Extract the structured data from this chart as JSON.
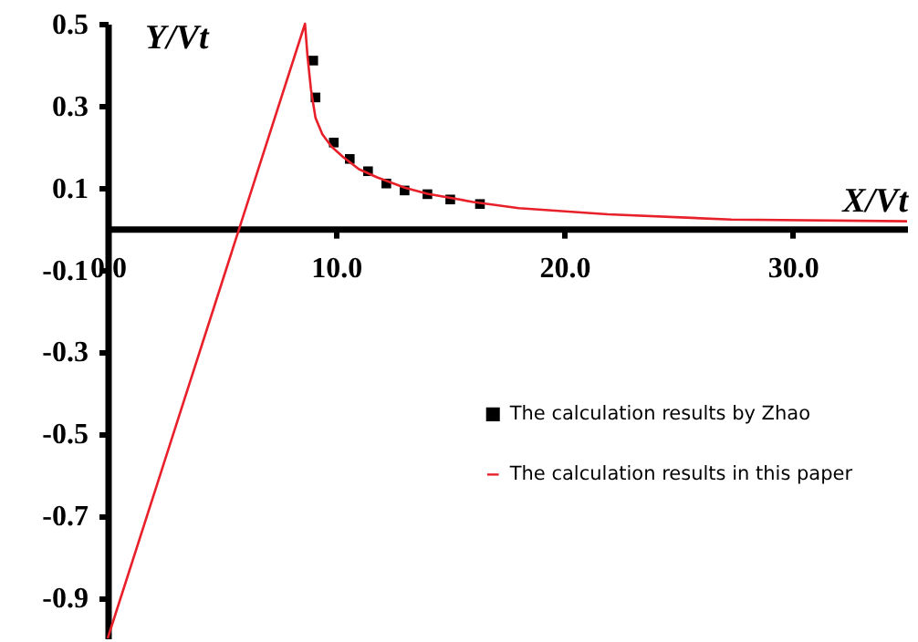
{
  "chart_data": {
    "type": "line",
    "xlabel": "X/Vt",
    "ylabel": "Y/Vt",
    "xlim": [
      0,
      35
    ],
    "ylim": [
      -1.0,
      0.5
    ],
    "xticks": [
      {
        "value": 0,
        "label": "0.0"
      },
      {
        "value": 10,
        "label": "10.0"
      },
      {
        "value": 20,
        "label": "20.0"
      },
      {
        "value": 30,
        "label": "30.0"
      }
    ],
    "yticks": [
      0.5,
      0.3,
      0.1,
      -0.1,
      -0.3,
      -0.5,
      -0.7,
      -0.9
    ],
    "grid": false,
    "legend": "bottom right",
    "series": [
      {
        "name": "The calculation results by Zhao",
        "type": "scatter",
        "marker": "square",
        "color": "#000000",
        "x": [
          9.0,
          9.1,
          9.9,
          10.6,
          11.4,
          12.2,
          13.0,
          14.0,
          15.0,
          16.3
        ],
        "values": [
          0.41,
          0.32,
          0.21,
          0.17,
          0.14,
          0.11,
          0.093,
          0.084,
          0.071,
          0.06
        ]
      },
      {
        "name": "The calculation results in this paper",
        "type": "line",
        "marker": "none",
        "color": "#e8202a",
        "x": [
          0,
          5.76,
          8.64,
          8.75,
          8.9,
          9.1,
          9.4,
          9.8,
          10.3,
          11.0,
          11.8,
          13.0,
          14.0,
          16.0,
          18.0,
          21.9,
          27.3,
          35
        ],
        "values": [
          -1.0,
          0,
          0.5,
          0.42,
          0.34,
          0.27,
          0.23,
          0.2,
          0.175,
          0.145,
          0.125,
          0.1,
          0.085,
          0.065,
          0.05,
          0.035,
          0.022,
          0.018
        ]
      }
    ]
  }
}
